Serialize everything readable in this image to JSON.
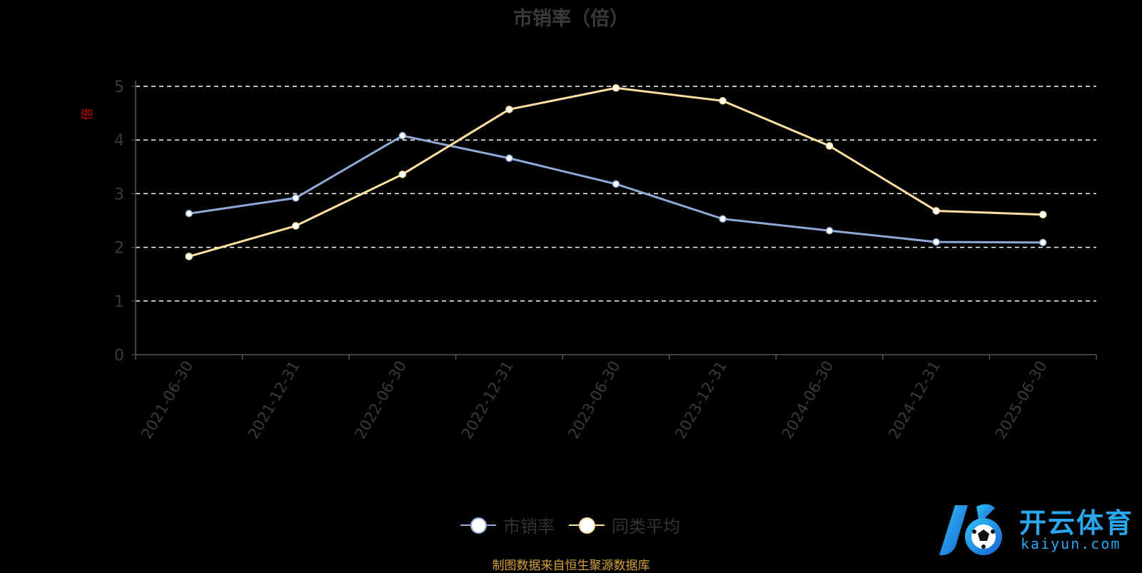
{
  "chart_data": {
    "type": "line",
    "title": "市销率（倍）",
    "ylabel": "倍",
    "xlabel": "",
    "ylim": [
      0,
      5
    ],
    "yticks": [
      0,
      1,
      2,
      3,
      4,
      5
    ],
    "grid": true,
    "legend_position": "bottom",
    "categories": [
      "2021-06-30",
      "2021-12-31",
      "2022-06-30",
      "2022-12-31",
      "2023-06-30",
      "2023-12-31",
      "2024-06-30",
      "2024-12-31",
      "2025-06-30"
    ],
    "series": [
      {
        "name": "市销率",
        "color": "#8fa9d9",
        "values": [
          2.63,
          2.92,
          4.08,
          3.66,
          3.18,
          2.53,
          2.31,
          2.1,
          2.09
        ]
      },
      {
        "name": "同类平均",
        "color": "#ffe0a0",
        "values": [
          1.83,
          2.4,
          3.36,
          4.57,
          4.97,
          4.73,
          3.89,
          2.68,
          2.61
        ]
      }
    ]
  },
  "colors": {
    "axis": "#555555",
    "tick_label": "#3a3a3a",
    "grid": "#ffffff",
    "ylabel": "#d80000"
  },
  "footer": {
    "source": "制图数据来自恒生聚源数据库"
  },
  "watermark": {
    "name": "开云体育",
    "domain": "kaiyun.com"
  }
}
